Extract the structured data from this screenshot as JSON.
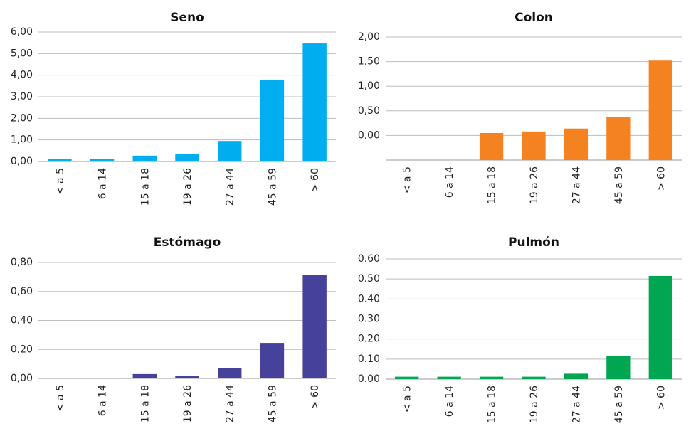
{
  "chart_data": [
    {
      "type": "bar",
      "title": "Seno",
      "color": "#00AEEF",
      "categories": [
        "< a 5",
        "6 a 14",
        "15 a 18",
        "19 a 26",
        "27 a 44",
        "45 a 59",
        "> 60"
      ],
      "values": [
        0.12,
        0.13,
        0.27,
        0.33,
        0.95,
        3.78,
        5.47
      ],
      "yticks": [
        "0,00",
        "1,00",
        "2,00",
        "3,00",
        "4,00",
        "5,00",
        "6,00"
      ],
      "ylim": [
        0,
        6
      ]
    },
    {
      "type": "bar",
      "title": "Colon",
      "color": "#F58220",
      "categories": [
        "< a 5",
        "6 a 14",
        "15 a 18",
        "19 a 26",
        "27 a 44",
        "45 a 59",
        "> 60"
      ],
      "values": [
        0.0,
        0.0,
        0.05,
        0.08,
        0.14,
        0.37,
        1.52
      ],
      "yticks": [
        "0,00",
        "0,50",
        "1,00",
        "1,50",
        "2,00"
      ],
      "ylim": [
        -0.5,
        2.0
      ]
    },
    {
      "type": "bar",
      "title": "Estómago",
      "color": "#46419A",
      "categories": [
        "< a 5",
        "6 a 14",
        "15 a 18",
        "19 a 26",
        "27 a 44",
        "45 a 59",
        "> 60"
      ],
      "values": [
        0.0,
        0.0,
        0.03,
        0.015,
        0.07,
        0.245,
        0.715
      ],
      "yticks": [
        "0,00",
        "0,20",
        "0,40",
        "0,60",
        "0,80"
      ],
      "ylim": [
        0,
        0.8
      ]
    },
    {
      "type": "bar",
      "title": "Pulmón",
      "color": "#00A651",
      "categories": [
        "< a 5",
        "6 a 14",
        "15 a 18",
        "19 a 26",
        "27 a 44",
        "45 a 59",
        "> 60"
      ],
      "values": [
        0.012,
        0.012,
        0.012,
        0.012,
        0.027,
        0.115,
        0.515
      ],
      "yticks": [
        "0.00",
        "0.10",
        "0.20",
        "0.30",
        "0.40",
        "0.50",
        "0.60"
      ],
      "ylim": [
        0,
        0.6
      ]
    }
  ]
}
